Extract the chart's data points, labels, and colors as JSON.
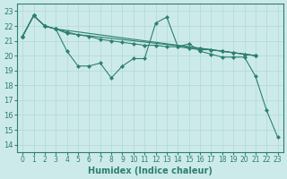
{
  "xlabel": "Humidex (Indice chaleur)",
  "xlim": [
    -0.5,
    23.5
  ],
  "ylim": [
    13.5,
    23.5
  ],
  "yticks": [
    14,
    15,
    16,
    17,
    18,
    19,
    20,
    21,
    22,
    23
  ],
  "xticks": [
    0,
    1,
    2,
    3,
    4,
    5,
    6,
    7,
    8,
    9,
    10,
    11,
    12,
    13,
    14,
    15,
    16,
    17,
    18,
    19,
    20,
    21,
    22,
    23
  ],
  "bg_color": "#cdeaea",
  "grid_color": "#b0d8d8",
  "line_color": "#2d7f70",
  "line1_x": [
    0,
    1,
    2,
    3,
    4,
    5,
    6,
    7,
    8,
    9,
    10,
    11,
    12,
    13,
    14,
    15,
    16,
    17,
    18,
    19,
    20,
    21,
    22,
    23
  ],
  "line1_y": [
    21.3,
    22.7,
    22.0,
    21.8,
    20.3,
    19.3,
    19.3,
    19.5,
    18.5,
    19.3,
    19.8,
    19.8,
    22.2,
    22.6,
    20.6,
    20.8,
    20.3,
    20.1,
    19.9,
    19.9,
    19.9,
    18.6,
    16.3,
    14.5
  ],
  "line2_x": [
    0,
    1,
    2,
    3,
    4,
    5,
    6,
    7,
    8,
    9,
    10,
    11,
    12,
    13,
    14,
    15,
    16,
    17,
    18,
    19,
    20,
    21
  ],
  "line2_y": [
    21.3,
    22.7,
    22.0,
    21.8,
    21.6,
    21.4,
    21.3,
    21.1,
    21.0,
    20.9,
    20.8,
    20.7,
    20.7,
    20.6,
    20.6,
    20.5,
    20.4,
    20.4,
    20.3,
    20.2,
    20.1,
    20.0
  ],
  "line3_x": [
    0,
    1,
    2,
    3,
    21
  ],
  "line3_y": [
    21.3,
    22.7,
    22.0,
    21.8,
    20.0
  ],
  "line4_x": [
    0,
    1,
    2,
    3,
    4,
    16,
    17,
    18,
    19,
    20,
    21
  ],
  "line4_y": [
    21.3,
    22.7,
    22.0,
    21.8,
    21.5,
    20.5,
    20.4,
    20.3,
    20.2,
    20.1,
    20.0
  ]
}
